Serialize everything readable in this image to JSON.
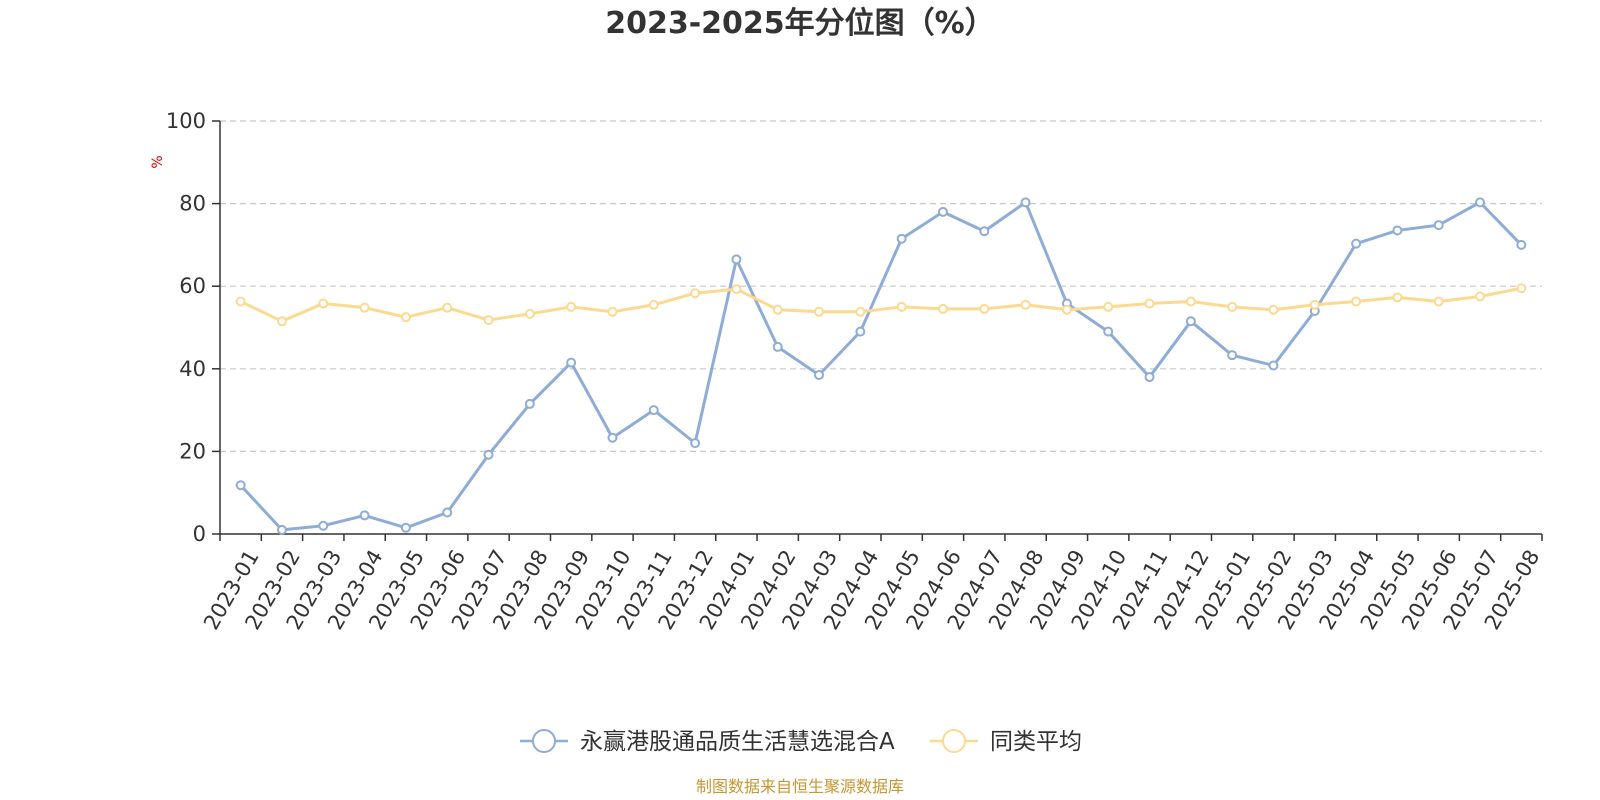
{
  "chart_data": {
    "type": "line",
    "title": "2023-2025年分位图（%）",
    "ylabel": "%",
    "ylim": [
      0,
      100
    ],
    "yticks": [
      0,
      20,
      40,
      60,
      80,
      100
    ],
    "grid": true,
    "legend_position": "bottom",
    "categories": [
      "2023-01",
      "2023-02",
      "2023-03",
      "2023-04",
      "2023-05",
      "2023-06",
      "2023-07",
      "2023-08",
      "2023-09",
      "2023-10",
      "2023-11",
      "2023-12",
      "2024-01",
      "2024-02",
      "2024-03",
      "2024-04",
      "2024-05",
      "2024-06",
      "2024-07",
      "2024-08",
      "2024-09",
      "2024-10",
      "2024-11",
      "2024-12",
      "2025-01",
      "2025-02",
      "2025-03",
      "2025-04",
      "2025-05",
      "2025-06",
      "2025-07",
      "2025-08"
    ],
    "series": [
      {
        "name": "永赢港股通品质生活慧选混合A",
        "color": "#8eacd8",
        "values": [
          11.8,
          1.0,
          2.0,
          4.5,
          1.5,
          5.2,
          19.2,
          31.5,
          41.5,
          23.3,
          30.0,
          22.0,
          66.5,
          45.3,
          38.5,
          49.0,
          71.5,
          78.0,
          73.3,
          80.3,
          55.8,
          49.0,
          38.0,
          51.5,
          43.3,
          40.8,
          54.0,
          70.3,
          73.5,
          74.8,
          80.3,
          70.0
        ]
      },
      {
        "name": "同类平均",
        "color": "#fcd98e",
        "values": [
          56.3,
          51.5,
          55.8,
          54.8,
          52.5,
          54.8,
          51.8,
          53.3,
          55.0,
          53.8,
          55.5,
          58.3,
          59.3,
          54.3,
          53.8,
          53.8,
          55.0,
          54.5,
          54.5,
          55.5,
          54.3,
          55.0,
          55.8,
          56.3,
          55.0,
          54.3,
          55.5,
          56.3,
          57.3,
          56.3,
          57.5,
          59.5
        ]
      }
    ]
  },
  "footer": {
    "source": "制图数据来自恒生聚源数据库"
  }
}
